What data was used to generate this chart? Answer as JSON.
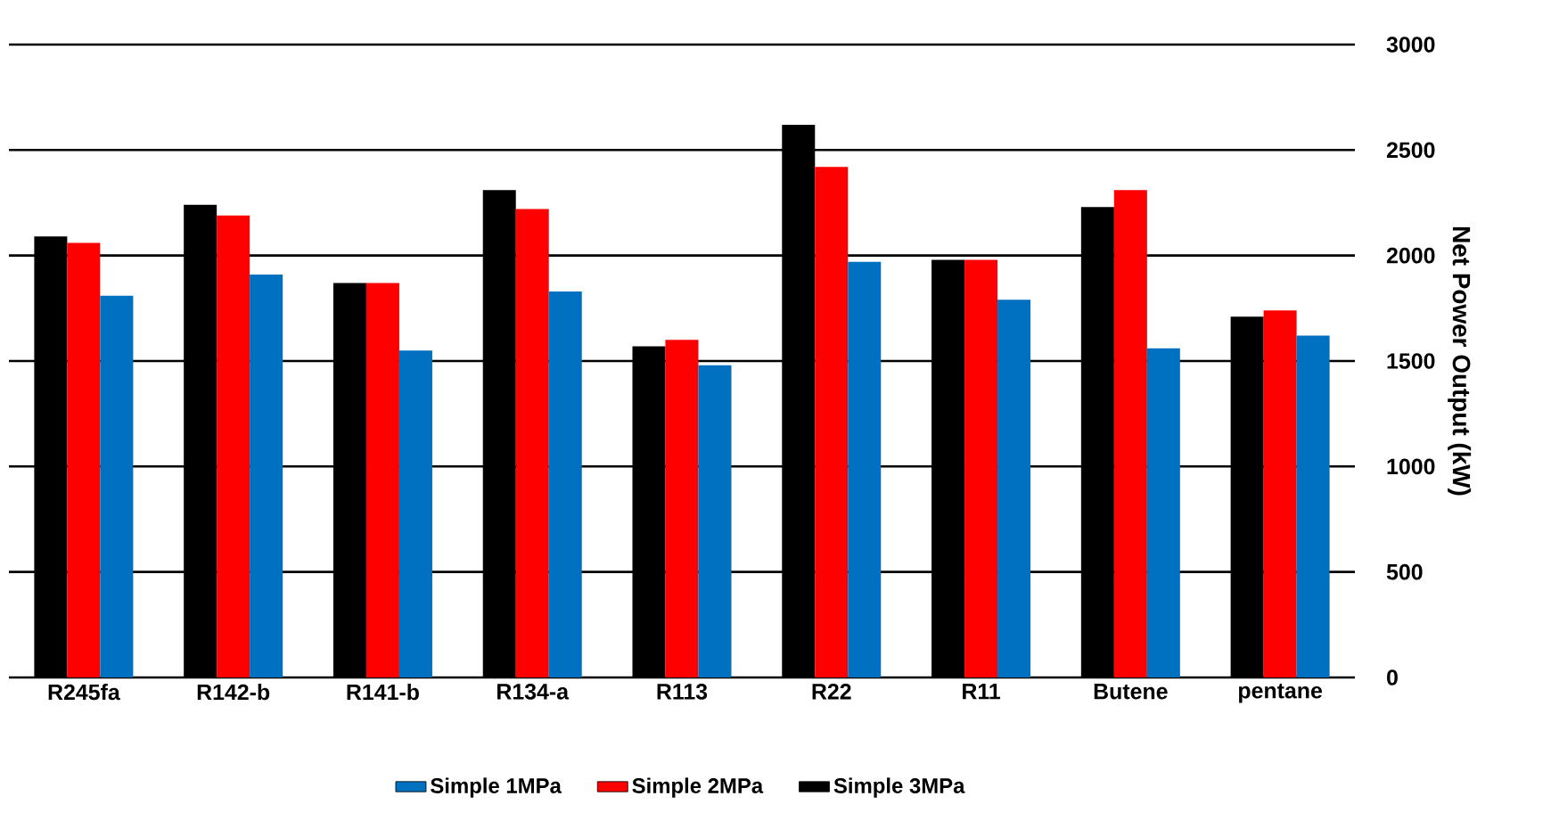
{
  "chart_data": {
    "type": "bar",
    "ylabel": "Net Power Output (kW)",
    "categories": [
      "R245fa",
      "R142-b",
      "R141-b",
      "R134-a",
      "R113",
      "R22",
      "R11",
      "Butene",
      "pentane"
    ],
    "series": [
      {
        "name": "Simple 1MPa",
        "color": "#0070c0",
        "values": [
          1810,
          1910,
          1550,
          1830,
          1480,
          1970,
          1790,
          1560,
          1620
        ]
      },
      {
        "name": "Simple 2MPa",
        "color": "#ff0000",
        "values": [
          2060,
          2190,
          1870,
          2220,
          1600,
          2420,
          1980,
          2310,
          1740
        ]
      },
      {
        "name": "Simple 3MPa",
        "color": "#000000",
        "values": [
          2090,
          2240,
          1870,
          2310,
          1570,
          2620,
          1980,
          2230,
          1710
        ]
      }
    ],
    "ylim": [
      0,
      3000
    ],
    "yticks": [
      0,
      500,
      1000,
      1500,
      2000,
      2500,
      3000
    ],
    "grid": "y",
    "legend": "bottom"
  }
}
